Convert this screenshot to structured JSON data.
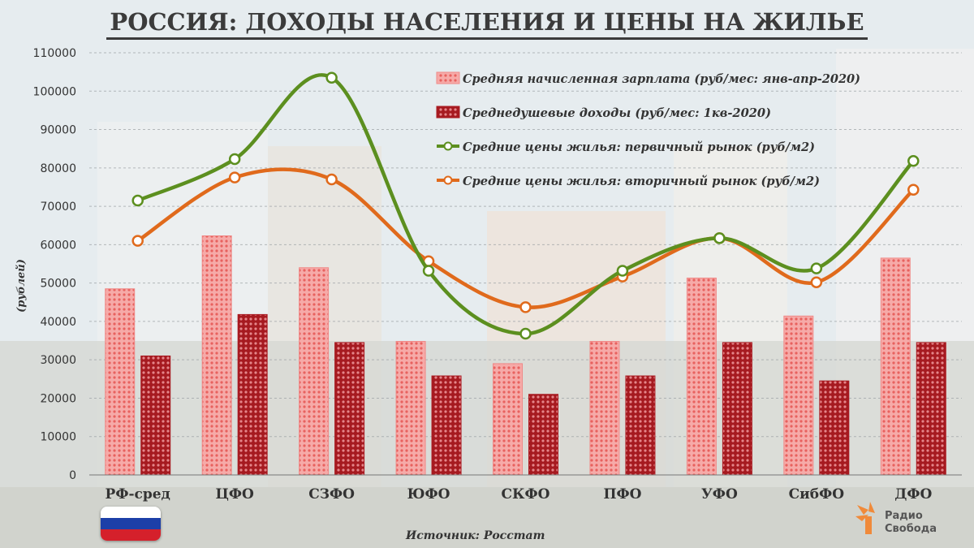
{
  "title": "РОССИЯ: ДОХОДЫ НАСЕЛЕНИЯ И ЦЕНЫ НА ЖИЛЬЕ",
  "source": "Источник: Росстат",
  "logo": {
    "line1": "Радио",
    "line2": "Свобода"
  },
  "flag_colors": [
    "#ffffff",
    "#1c3fa8",
    "#d5202b"
  ],
  "colors": {
    "salary": "#f08a88",
    "income": "#a91b22",
    "primary": "#5c8f1f",
    "secondary": "#e06a1c"
  },
  "chart_data": {
    "type": "bar",
    "categories": [
      "РФ-сред",
      "ЦФО",
      "СЗФО",
      "ЮФО",
      "СКФО",
      "ПФО",
      "УФО",
      "СибФО",
      "ДФО"
    ],
    "ylabel": "(рублей)",
    "ylim": [
      0,
      110000
    ],
    "yticks": [
      0,
      10000,
      20000,
      30000,
      40000,
      50000,
      60000,
      70000,
      80000,
      90000,
      100000,
      110000
    ],
    "grid": true,
    "legend_position": "top-right",
    "series": [
      {
        "name": "Средняя начисленная зарплата (руб/мес: янв-апр-2020)",
        "type": "bar",
        "values": [
          48500,
          62300,
          54000,
          34800,
          29000,
          34800,
          51300,
          41400,
          56500
        ]
      },
      {
        "name": "Среднедушевые доходы (руб/мес: 1кв-2020)",
        "type": "bar",
        "values": [
          31000,
          41800,
          34500,
          25800,
          21000,
          25800,
          34500,
          24500,
          34500
        ]
      },
      {
        "name": "Средние цены жилья: первичный рынок (руб/м2)",
        "type": "line",
        "values": [
          71500,
          82300,
          103500,
          53200,
          36800,
          53200,
          61700,
          53800,
          81800
        ]
      },
      {
        "name": "Средние цены жилья: вторичный рынок (руб/м2)",
        "type": "line",
        "values": [
          61000,
          77500,
          77000,
          55700,
          43700,
          51700,
          61700,
          50200,
          74300
        ]
      }
    ]
  }
}
